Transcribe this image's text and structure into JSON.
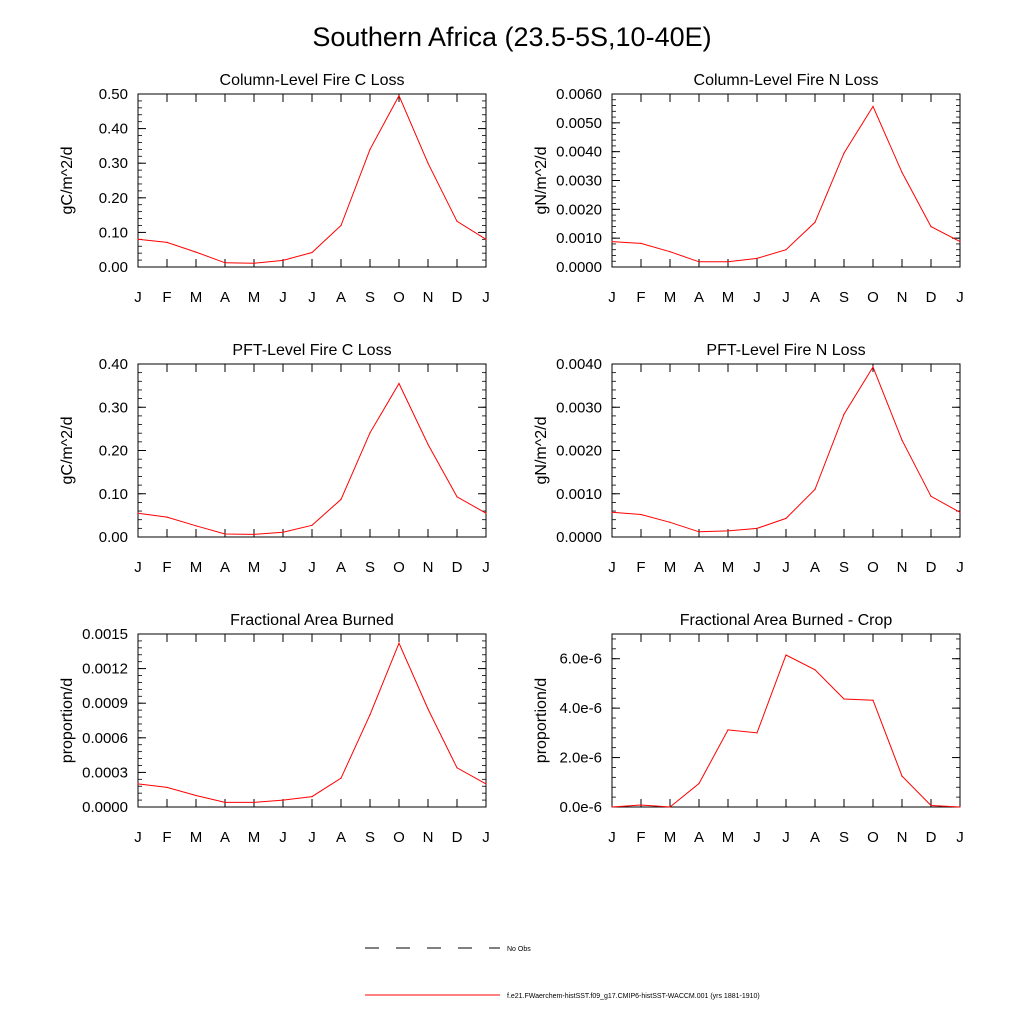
{
  "page": {
    "title": "Southern Africa (23.5-5S,10-40E)"
  },
  "colors": {
    "series_line": "#ff0000",
    "axis": "#000000",
    "legend_dash": "#000000"
  },
  "legend": {
    "items": [
      {
        "label": "No Obs",
        "style": "dashed",
        "color": "#000000"
      },
      {
        "label": "f.e21.FWaerchem-histSST.f09_g17.CMIP6-histSST-WACCM.001 (yrs 1881-1910)",
        "style": "solid",
        "color": "#ff0000"
      }
    ]
  },
  "chart_data": [
    {
      "type": "line",
      "title": "Column-Level Fire C Loss",
      "ylabel": "gC/m^2/d",
      "x": [
        "J",
        "F",
        "M",
        "A",
        "M",
        "J",
        "J",
        "A",
        "S",
        "O",
        "N",
        "D",
        "J"
      ],
      "ylim": [
        0,
        0.5
      ],
      "yticks": [
        "0.00",
        "0.10",
        "0.20",
        "0.30",
        "0.40",
        "0.50"
      ],
      "series": [
        {
          "values": [
            0.08,
            0.071,
            0.043,
            0.012,
            0.011,
            0.019,
            0.042,
            0.12,
            0.34,
            0.495,
            0.3,
            0.132,
            0.08
          ]
        }
      ]
    },
    {
      "type": "line",
      "title": "Column-Level Fire N Loss",
      "ylabel": "gN/m^2/d",
      "x": [
        "J",
        "F",
        "M",
        "A",
        "M",
        "J",
        "J",
        "A",
        "S",
        "O",
        "N",
        "D",
        "J"
      ],
      "ylim": [
        0,
        0.006
      ],
      "yticks": [
        "0.0000",
        "0.0010",
        "0.0020",
        "0.0030",
        "0.0040",
        "0.0050",
        "0.0060"
      ],
      "series": [
        {
          "values": [
            0.00088,
            0.00082,
            0.00053,
            0.00018,
            0.00018,
            0.0003,
            0.0006,
            0.00155,
            0.00395,
            0.00557,
            0.00328,
            0.0014,
            0.00088
          ]
        }
      ]
    },
    {
      "type": "line",
      "title": "PFT-Level Fire C Loss",
      "ylabel": "gC/m^2/d",
      "x": [
        "J",
        "F",
        "M",
        "A",
        "M",
        "J",
        "J",
        "A",
        "S",
        "O",
        "N",
        "D",
        "J"
      ],
      "ylim": [
        0,
        0.4
      ],
      "yticks": [
        "0.00",
        "0.10",
        "0.20",
        "0.30",
        "0.40"
      ],
      "series": [
        {
          "values": [
            0.055,
            0.046,
            0.026,
            0.007,
            0.006,
            0.011,
            0.027,
            0.087,
            0.241,
            0.355,
            0.214,
            0.093,
            0.055
          ]
        }
      ]
    },
    {
      "type": "line",
      "title": "PFT-Level Fire N Loss",
      "ylabel": "gN/m^2/d",
      "x": [
        "J",
        "F",
        "M",
        "A",
        "M",
        "J",
        "J",
        "A",
        "S",
        "O",
        "N",
        "D",
        "J"
      ],
      "ylim": [
        0,
        0.004
      ],
      "yticks": [
        "0.0000",
        "0.0010",
        "0.0020",
        "0.0030",
        "0.0040"
      ],
      "series": [
        {
          "values": [
            0.00057,
            0.00052,
            0.00034,
            0.00012,
            0.00014,
            0.0002,
            0.00043,
            0.0011,
            0.00284,
            0.00393,
            0.00224,
            0.00094,
            0.00057
          ]
        }
      ]
    },
    {
      "type": "line",
      "title": "Fractional Area Burned",
      "ylabel": "proportion/d",
      "x": [
        "J",
        "F",
        "M",
        "A",
        "M",
        "J",
        "J",
        "A",
        "S",
        "O",
        "N",
        "D",
        "J"
      ],
      "ylim": [
        0,
        0.0015
      ],
      "yticks": [
        "0.0000",
        "0.0003",
        "0.0006",
        "0.0009",
        "0.0012",
        "0.0015"
      ],
      "series": [
        {
          "values": [
            0.0002,
            0.00017,
            0.0001,
            4e-05,
            4e-05,
            6e-05,
            9e-05,
            0.00025,
            0.0008,
            0.00142,
            0.00085,
            0.00034,
            0.0002
          ]
        }
      ]
    },
    {
      "type": "line",
      "title": "Fractional Area Burned - Crop",
      "ylabel": "proportion/d",
      "x": [
        "J",
        "F",
        "M",
        "A",
        "M",
        "J",
        "J",
        "A",
        "S",
        "O",
        "N",
        "D",
        "J"
      ],
      "ylim": [
        0,
        7e-06
      ],
      "yticks": [
        "0.0e-6",
        "2.0e-6",
        "4.0e-6",
        "6.0e-6"
      ],
      "ytick_values": [
        0,
        2e-06,
        4e-06,
        6e-06
      ],
      "series": [
        {
          "values": [
            0.0,
            8e-08,
            0.0,
            9.5e-07,
            3.12e-06,
            3e-06,
            6.15e-06,
            5.55e-06,
            4.37e-06,
            4.32e-06,
            1.25e-06,
            6e-08,
            0.0
          ]
        }
      ]
    }
  ]
}
